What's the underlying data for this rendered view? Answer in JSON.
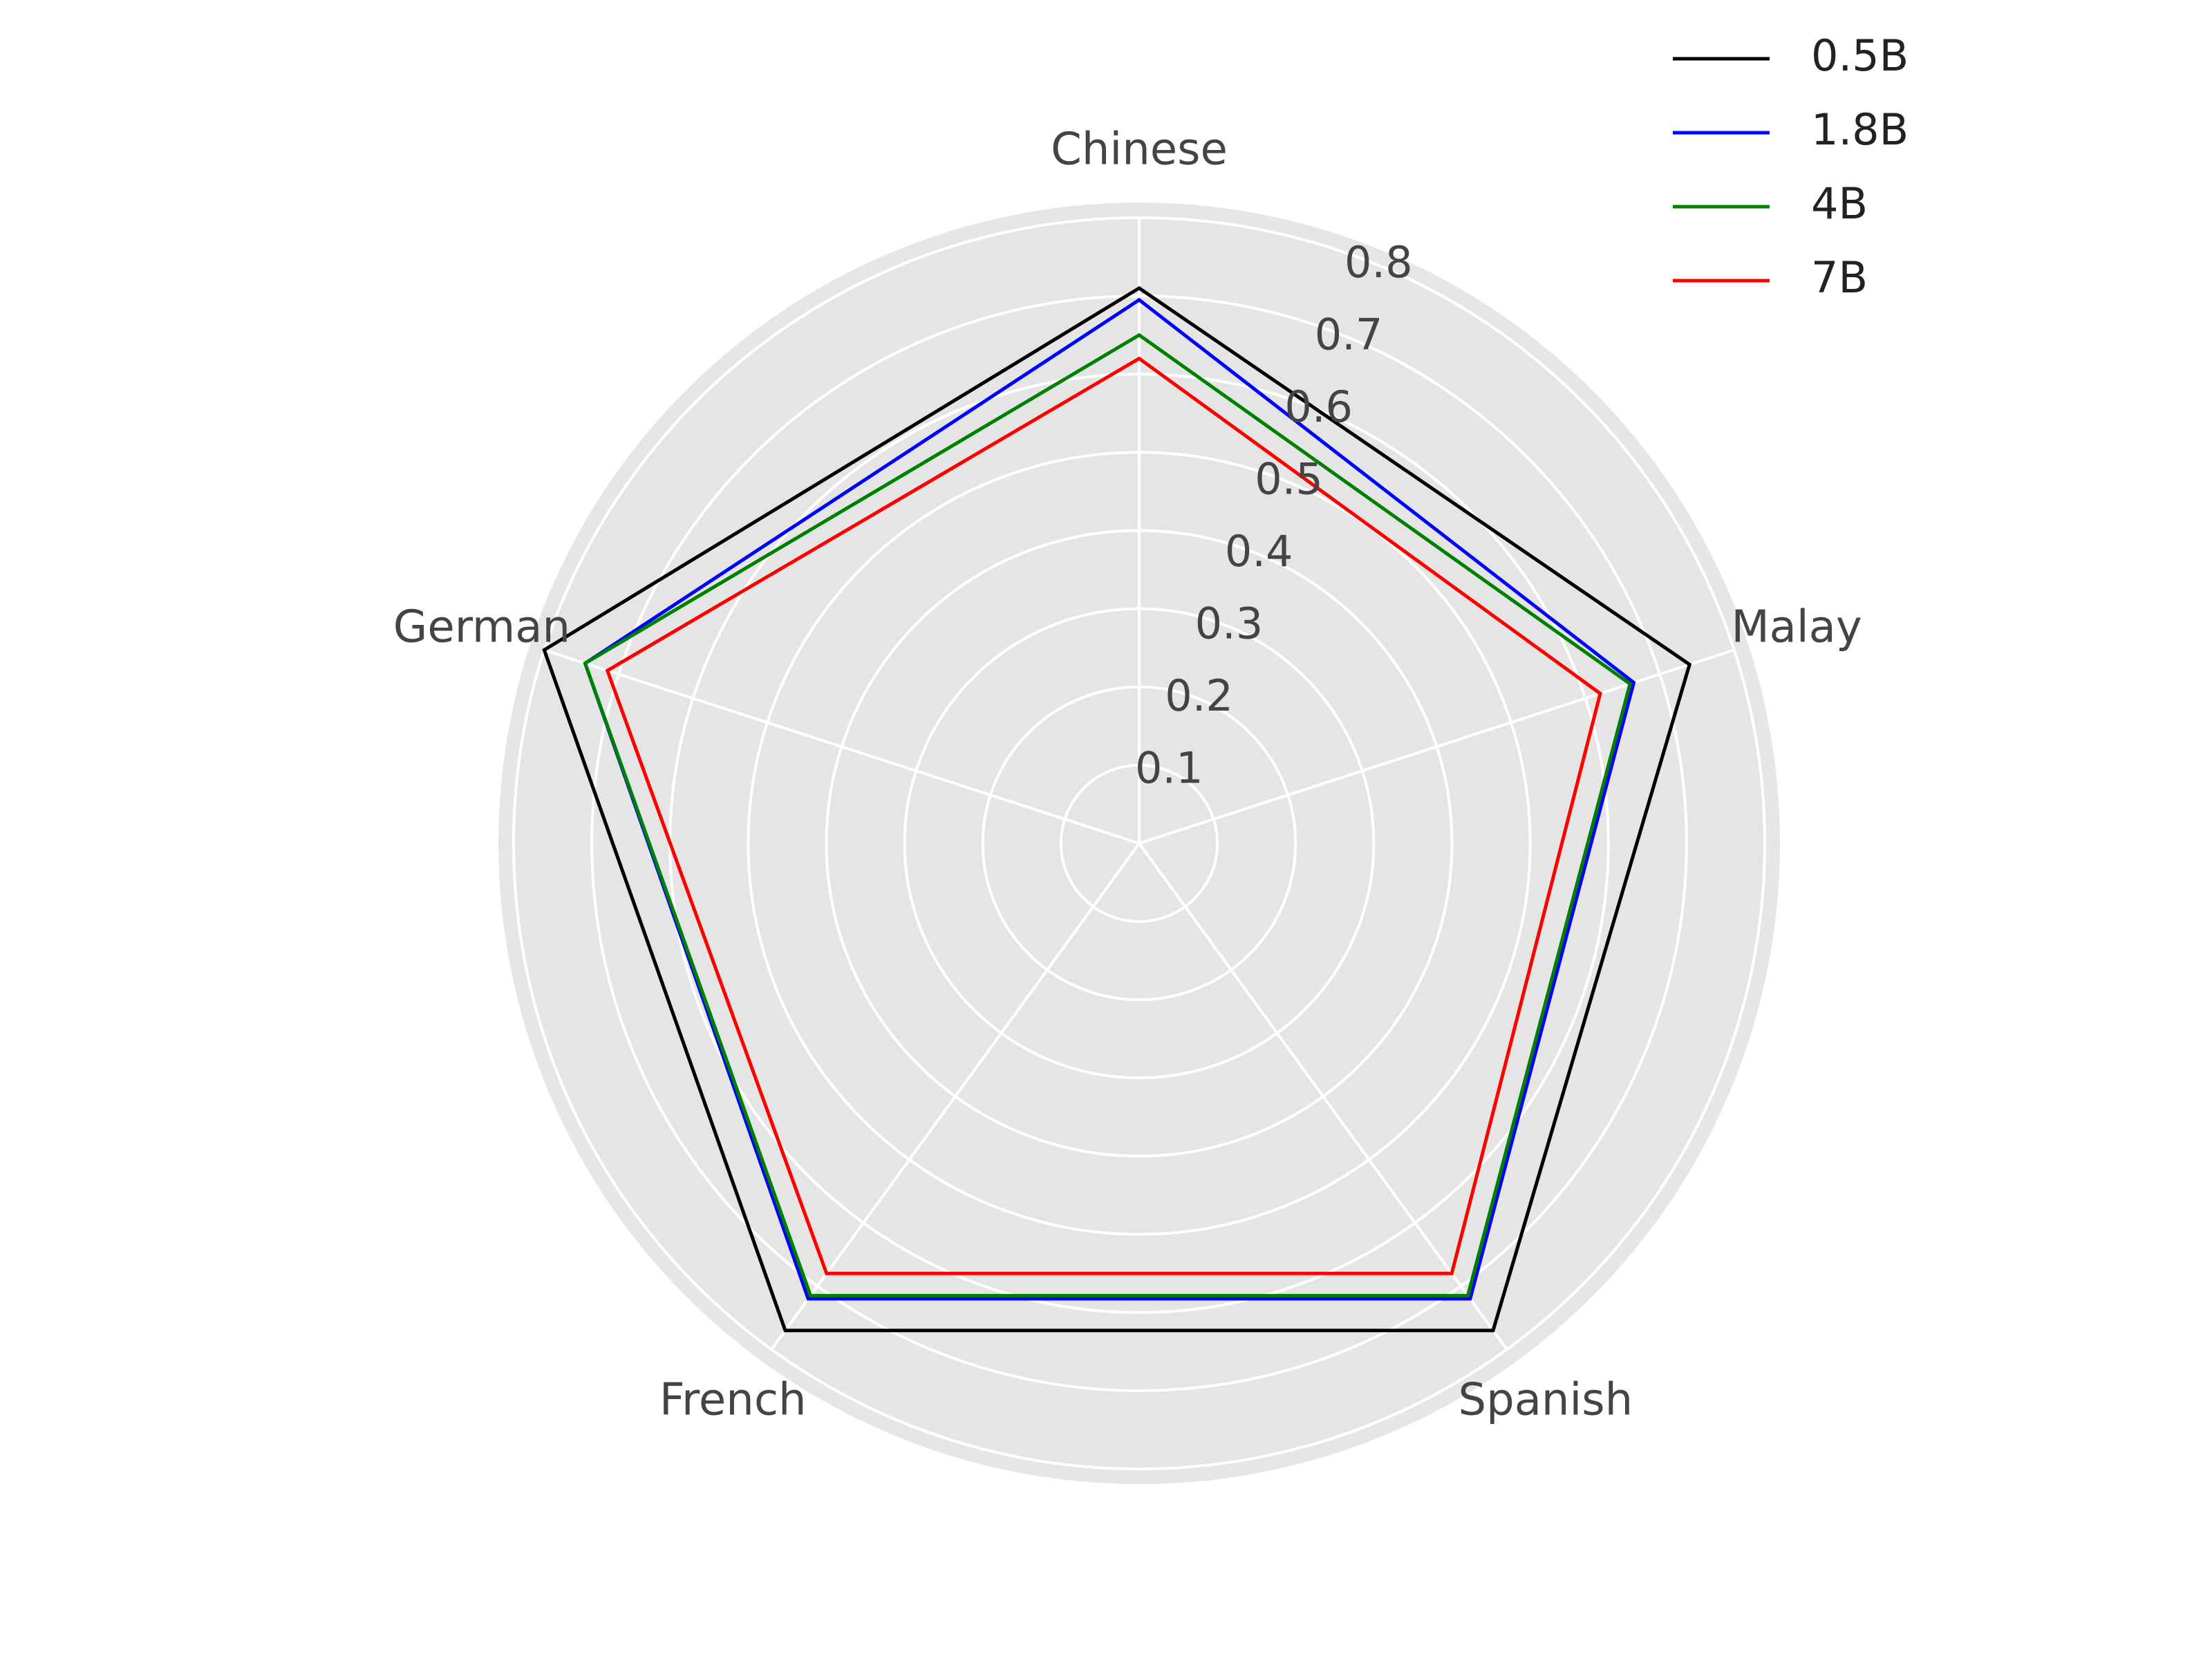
{
  "chart_data": {
    "type": "radar",
    "axes": [
      "Chinese",
      "Malay",
      "Spanish",
      "French",
      "German"
    ],
    "rlim": [
      0,
      0.8
    ],
    "rticks": [
      0.1,
      0.2,
      0.3,
      0.4,
      0.5,
      0.6,
      0.7,
      0.8
    ],
    "rtick_labels": [
      "0.1",
      "0.2",
      "0.3",
      "0.4",
      "0.5",
      "0.6",
      "0.7",
      "0.8"
    ],
    "grid": true,
    "legend_position": "top-right",
    "series": [
      {
        "name": "0.5B",
        "color": "#000000",
        "values": [
          0.71,
          0.74,
          0.77,
          0.77,
          0.8
        ]
      },
      {
        "name": "1.8B",
        "color": "#0000ff",
        "values": [
          0.695,
          0.665,
          0.72,
          0.72,
          0.745
        ]
      },
      {
        "name": "4B",
        "color": "#008000",
        "values": [
          0.65,
          0.66,
          0.715,
          0.715,
          0.745
        ]
      },
      {
        "name": "7B",
        "color": "#ff0000",
        "values": [
          0.62,
          0.62,
          0.68,
          0.68,
          0.715
        ]
      }
    ]
  }
}
